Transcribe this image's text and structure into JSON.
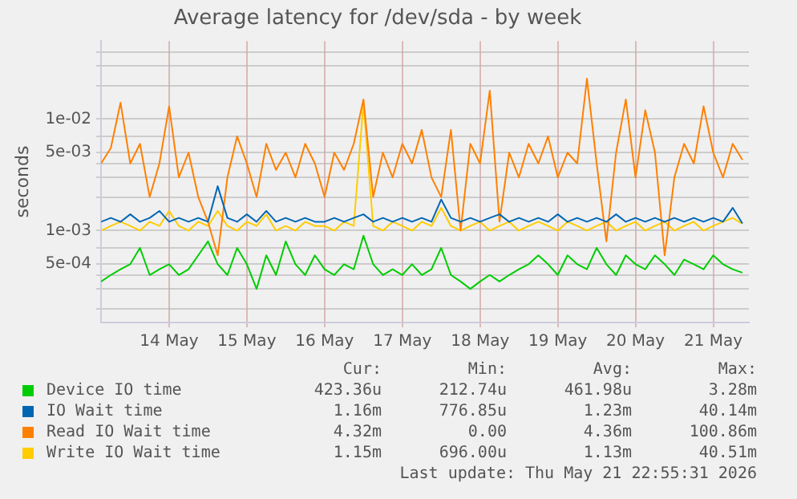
{
  "chart_data": {
    "type": "line",
    "title": "Average latency for /dev/sda - by week",
    "ylabel": "seconds",
    "log": "y",
    "grid": true,
    "legend": "bottom",
    "marker": "none",
    "line_style": "solid",
    "ylim": [
      0.00015,
      0.05
    ],
    "yticks": [
      {
        "value": 0.0002,
        "label": null
      },
      {
        "value": 0.0003,
        "label": null
      },
      {
        "value": 0.0004,
        "label": null
      },
      {
        "value": 0.0005,
        "label": "5e-04"
      },
      {
        "value": 0.0007,
        "label": null
      },
      {
        "value": 0.001,
        "label": "1e-03"
      },
      {
        "value": 0.002,
        "label": null
      },
      {
        "value": 0.003,
        "label": null
      },
      {
        "value": 0.004,
        "label": null
      },
      {
        "value": 0.005,
        "label": "5e-03"
      },
      {
        "value": 0.007,
        "label": null
      },
      {
        "value": 0.01,
        "label": "1e-02"
      },
      {
        "value": 0.02,
        "label": null
      },
      {
        "value": 0.03,
        "label": null
      },
      {
        "value": 0.04,
        "label": null
      }
    ],
    "xlim": [
      "2026-05-13T15:00",
      "2026-05-21T23:00"
    ],
    "xticks": [
      {
        "value": "2026-05-14T12:00",
        "label": "14 May"
      },
      {
        "value": "2026-05-15T12:00",
        "label": "15 May"
      },
      {
        "value": "2026-05-16T12:00",
        "label": "16 May"
      },
      {
        "value": "2026-05-17T12:00",
        "label": "17 May"
      },
      {
        "value": "2026-05-18T12:00",
        "label": "18 May"
      },
      {
        "value": "2026-05-19T12:00",
        "label": "19 May"
      },
      {
        "value": "2026-05-20T12:00",
        "label": "20 May"
      },
      {
        "value": "2026-05-21T12:00",
        "label": "21 May"
      }
    ],
    "x": [
      "2026-05-13T15:00",
      "2026-05-13T18:00",
      "2026-05-13T21:00",
      "2026-05-14T00:00",
      "2026-05-14T03:00",
      "2026-05-14T06:00",
      "2026-05-14T09:00",
      "2026-05-14T12:00",
      "2026-05-14T15:00",
      "2026-05-14T18:00",
      "2026-05-14T21:00",
      "2026-05-15T00:00",
      "2026-05-15T03:00",
      "2026-05-15T06:00",
      "2026-05-15T09:00",
      "2026-05-15T12:00",
      "2026-05-15T15:00",
      "2026-05-15T18:00",
      "2026-05-15T21:00",
      "2026-05-16T00:00",
      "2026-05-16T03:00",
      "2026-05-16T06:00",
      "2026-05-16T09:00",
      "2026-05-16T12:00",
      "2026-05-16T15:00",
      "2026-05-16T18:00",
      "2026-05-16T21:00",
      "2026-05-17T00:00",
      "2026-05-17T03:00",
      "2026-05-17T06:00",
      "2026-05-17T09:00",
      "2026-05-17T12:00",
      "2026-05-17T15:00",
      "2026-05-17T18:00",
      "2026-05-17T21:00",
      "2026-05-18T00:00",
      "2026-05-18T03:00",
      "2026-05-18T06:00",
      "2026-05-18T09:00",
      "2026-05-18T12:00",
      "2026-05-18T15:00",
      "2026-05-18T18:00",
      "2026-05-18T21:00",
      "2026-05-19T00:00",
      "2026-05-19T03:00",
      "2026-05-19T06:00",
      "2026-05-19T09:00",
      "2026-05-19T12:00",
      "2026-05-19T15:00",
      "2026-05-19T18:00",
      "2026-05-19T21:00",
      "2026-05-20T00:00",
      "2026-05-20T03:00",
      "2026-05-20T06:00",
      "2026-05-20T09:00",
      "2026-05-20T12:00",
      "2026-05-20T15:00",
      "2026-05-20T18:00",
      "2026-05-20T21:00",
      "2026-05-21T00:00",
      "2026-05-21T03:00",
      "2026-05-21T06:00",
      "2026-05-21T09:00",
      "2026-05-21T12:00",
      "2026-05-21T15:00",
      "2026-05-21T18:00",
      "2026-05-21T21:00"
    ],
    "series": [
      {
        "name": "Device IO time",
        "color": "#00cc00",
        "values": [
          0.00035,
          0.0004,
          0.00045,
          0.0005,
          0.0007,
          0.0004,
          0.00045,
          0.0005,
          0.0004,
          0.00045,
          0.0006,
          0.0008,
          0.0005,
          0.0004,
          0.0007,
          0.0005,
          0.0003,
          0.0006,
          0.0004,
          0.0008,
          0.0005,
          0.0004,
          0.0006,
          0.00045,
          0.0004,
          0.0005,
          0.00045,
          0.0009,
          0.0005,
          0.0004,
          0.00045,
          0.0004,
          0.0005,
          0.0004,
          0.00045,
          0.0007,
          0.0004,
          0.00035,
          0.0003,
          0.00035,
          0.0004,
          0.00035,
          0.0004,
          0.00045,
          0.0005,
          0.0006,
          0.0005,
          0.0004,
          0.0006,
          0.0005,
          0.00045,
          0.0007,
          0.0005,
          0.0004,
          0.0006,
          0.0005,
          0.00045,
          0.0006,
          0.0005,
          0.0004,
          0.00055,
          0.0005,
          0.00045,
          0.0006,
          0.0005,
          0.00045,
          0.00042
        ]
      },
      {
        "name": "IO Wait time",
        "color": "#0066b3",
        "values": [
          0.0012,
          0.0013,
          0.0012,
          0.0014,
          0.0012,
          0.0013,
          0.0015,
          0.0012,
          0.0013,
          0.0012,
          0.0013,
          0.0012,
          0.0025,
          0.0013,
          0.0012,
          0.0014,
          0.0012,
          0.0015,
          0.0012,
          0.0013,
          0.0012,
          0.0013,
          0.0012,
          0.0012,
          0.0013,
          0.0012,
          0.0013,
          0.0014,
          0.0012,
          0.0013,
          0.0012,
          0.0013,
          0.0012,
          0.0013,
          0.0012,
          0.0019,
          0.0013,
          0.0012,
          0.0013,
          0.0012,
          0.0013,
          0.0014,
          0.0012,
          0.0013,
          0.0012,
          0.0013,
          0.0012,
          0.0014,
          0.0012,
          0.0013,
          0.0012,
          0.0013,
          0.0012,
          0.0014,
          0.0012,
          0.0013,
          0.0012,
          0.0013,
          0.0012,
          0.0013,
          0.0012,
          0.0013,
          0.0012,
          0.0013,
          0.0012,
          0.0016,
          0.00116
        ]
      },
      {
        "name": "Read IO Wait time",
        "color": "#ff8000",
        "values": [
          0.004,
          0.0055,
          0.014,
          0.004,
          0.006,
          0.002,
          0.004,
          0.013,
          0.003,
          0.005,
          0.002,
          0.0012,
          0.0006,
          0.003,
          0.007,
          0.004,
          0.002,
          0.006,
          0.0035,
          0.005,
          0.003,
          0.006,
          0.004,
          0.002,
          0.005,
          0.0035,
          0.006,
          0.015,
          0.002,
          0.005,
          0.003,
          0.006,
          0.004,
          0.008,
          0.003,
          0.002,
          0.008,
          0.001,
          0.006,
          0.004,
          0.018,
          0.0012,
          0.005,
          0.003,
          0.006,
          0.004,
          0.007,
          0.003,
          0.005,
          0.004,
          0.023,
          0.004,
          0.0008,
          0.005,
          0.015,
          0.003,
          0.012,
          0.005,
          0.0006,
          0.003,
          0.006,
          0.004,
          0.013,
          0.005,
          0.003,
          0.006,
          0.0043
        ]
      },
      {
        "name": "Write IO Wait time",
        "color": "#ffcc00",
        "values": [
          0.001,
          0.0011,
          0.0012,
          0.0011,
          0.001,
          0.0012,
          0.0011,
          0.0015,
          0.0011,
          0.001,
          0.0012,
          0.0011,
          0.0015,
          0.0011,
          0.001,
          0.0012,
          0.0011,
          0.0014,
          0.001,
          0.0011,
          0.001,
          0.0012,
          0.0011,
          0.0011,
          0.001,
          0.0012,
          0.0011,
          0.014,
          0.0011,
          0.001,
          0.0012,
          0.0011,
          0.001,
          0.0012,
          0.0011,
          0.0016,
          0.0011,
          0.001,
          0.0011,
          0.0012,
          0.001,
          0.0011,
          0.0012,
          0.001,
          0.0011,
          0.0012,
          0.0011,
          0.001,
          0.0012,
          0.0011,
          0.001,
          0.0011,
          0.0012,
          0.001,
          0.0011,
          0.0012,
          0.001,
          0.0011,
          0.0012,
          0.001,
          0.0011,
          0.0012,
          0.001,
          0.0011,
          0.0012,
          0.0013,
          0.00115
        ]
      }
    ],
    "annotations": [
      "Cur:",
      "Min:",
      "Avg:",
      "Max:",
      "423.36u",
      "212.74u",
      "461.98u",
      "3.28m",
      "1.16m",
      "776.85u",
      "1.23m",
      "40.14m",
      "4.32m",
      "0.00",
      "4.36m",
      "100.86m",
      "1.15m",
      "696.00u",
      "1.13m",
      "40.51m",
      "Last update: Thu May 21 22:55:31 2026"
    ]
  }
}
